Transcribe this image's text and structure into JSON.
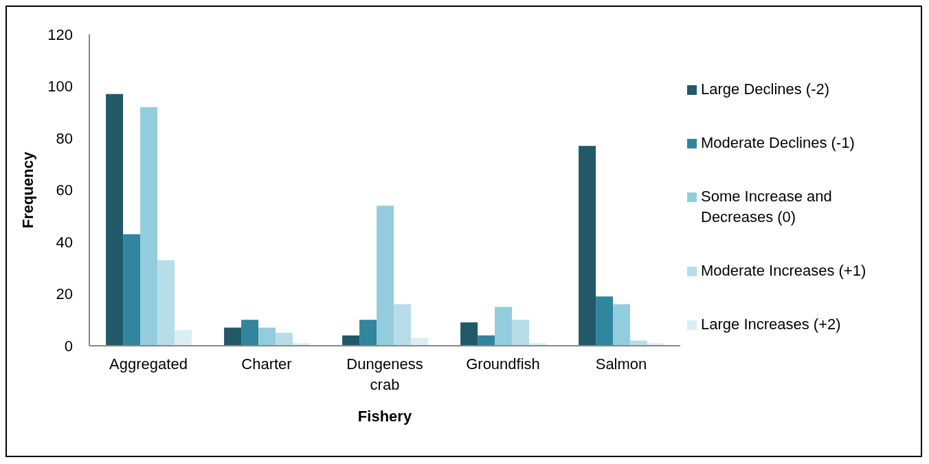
{
  "chart_data": {
    "type": "bar",
    "xlabel": "Fishery",
    "ylabel": "Frequency",
    "categories": [
      "Aggregated",
      "Charter",
      "Dungeness crab",
      "Groundfish",
      "Salmon"
    ],
    "series": [
      {
        "name": "Large Declines (-2)",
        "color": "#215968",
        "values": [
          97,
          7,
          4,
          9,
          77
        ]
      },
      {
        "name": "Moderate Declines (-1)",
        "color": "#31859c",
        "values": [
          43,
          10,
          10,
          4,
          19
        ]
      },
      {
        "name": "Some Increase and Decreases (0)",
        "color": "#93cddd",
        "values": [
          92,
          7,
          54,
          15,
          16
        ]
      },
      {
        "name": "Moderate Increases (+1)",
        "color": "#b7dee8",
        "values": [
          33,
          5,
          16,
          10,
          2
        ]
      },
      {
        "name": "Large Increases (+2)",
        "color": "#dbeef4",
        "values": [
          6,
          1,
          3,
          1,
          1
        ]
      }
    ],
    "ylim": [
      0,
      120
    ],
    "yticks": [
      0,
      20,
      40,
      60,
      80,
      100,
      120
    ],
    "grid": false,
    "legend": "right"
  }
}
